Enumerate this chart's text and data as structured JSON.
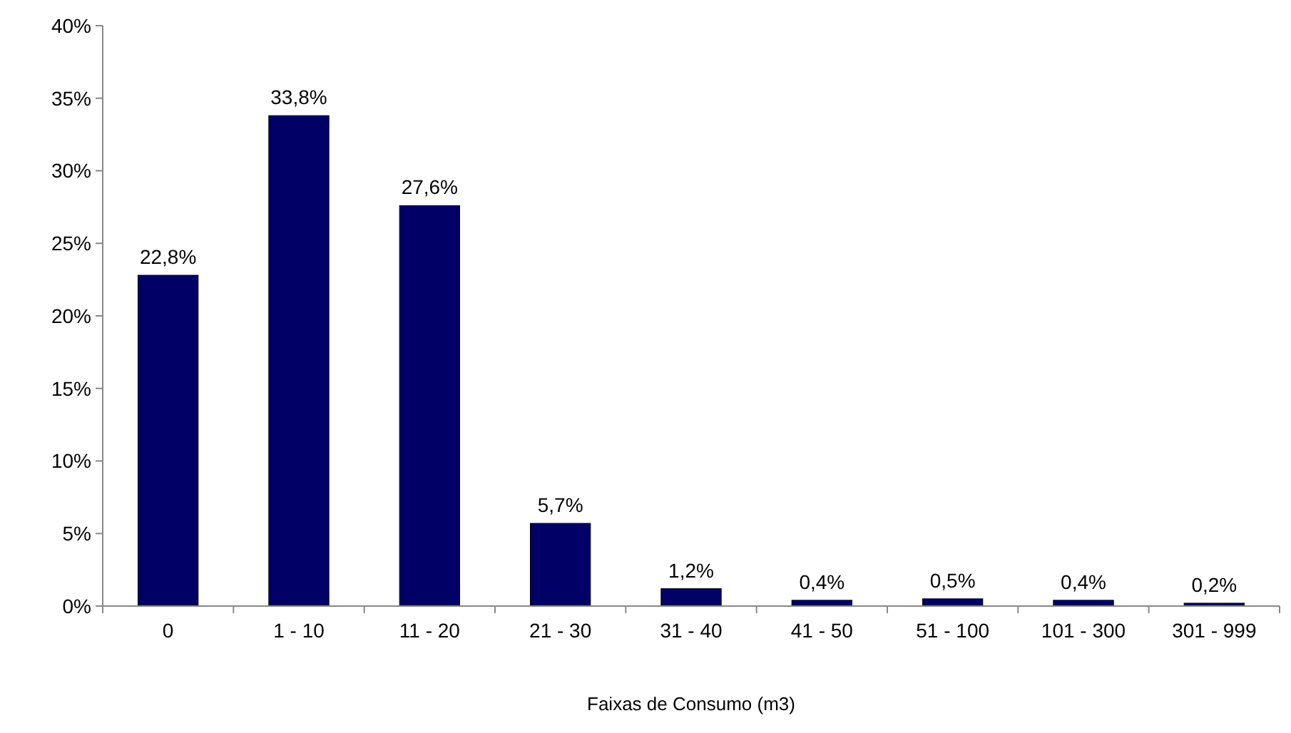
{
  "chart_data": {
    "type": "bar",
    "xlabel": "Faixas de Consumo (m3)",
    "categories": [
      "0",
      "1 - 10",
      "11 - 20",
      "21 - 30",
      "31 - 40",
      "41 - 50",
      "51 - 100",
      "101 - 300",
      "301 - 999"
    ],
    "values": [
      22.8,
      33.8,
      27.6,
      5.7,
      1.2,
      0.4,
      0.5,
      0.4,
      0.2
    ],
    "value_labels": [
      "22,8%",
      "33,8%",
      "27,6%",
      "5,7%",
      "1,2%",
      "0,4%",
      "0,5%",
      "0,4%",
      "0,2%"
    ],
    "color": "#000066",
    "ylim": [
      0,
      40
    ],
    "yticks": [
      {
        "value": 0,
        "label": "0%"
      },
      {
        "value": 5,
        "label": "5%"
      },
      {
        "value": 10,
        "label": "10%"
      },
      {
        "value": 15,
        "label": "15%"
      },
      {
        "value": 20,
        "label": "20%"
      },
      {
        "value": 25,
        "label": "25%"
      },
      {
        "value": 30,
        "label": "30%"
      },
      {
        "value": 35,
        "label": "35%"
      },
      {
        "value": 40,
        "label": "40%"
      }
    ],
    "grid": false
  }
}
